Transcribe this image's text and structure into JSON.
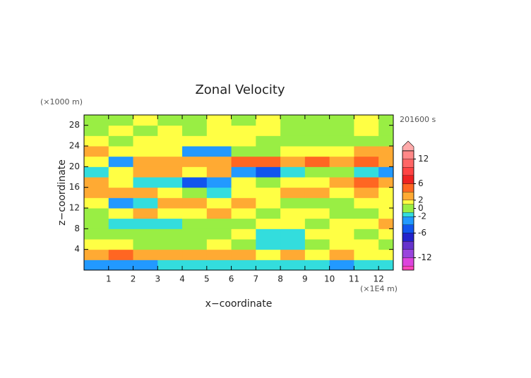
{
  "chart_data": {
    "type": "contour",
    "title": "Zonal Velocity",
    "x_label": "x−coordinate",
    "y_label": "z−coordinate",
    "x_unit": "(×1E4 m)",
    "y_unit": "(×1000 m)",
    "time_label": "201600 s",
    "xlim": [
      0,
      12.6
    ],
    "ylim": [
      0,
      30
    ],
    "xticks": [
      1,
      2,
      3,
      4,
      5,
      6,
      7,
      8,
      9,
      10,
      11,
      12
    ],
    "yticks": [
      4,
      8,
      12,
      16,
      20,
      24,
      28
    ],
    "x": [
      0.5,
      1.5,
      2.5,
      3.5,
      4.5,
      5.5,
      6.5,
      7.5,
      8.5,
      9.5,
      10.5,
      11.5,
      12.5
    ],
    "y": [
      1,
      3,
      5,
      7,
      9,
      11,
      13,
      15,
      17,
      19,
      21,
      23,
      25,
      27,
      29
    ],
    "z": [
      [
        -3,
        -3,
        -3,
        -2,
        -2,
        -1.5,
        -1.5,
        -1.5,
        -1.5,
        -1.5,
        -3,
        -1.5,
        -1.5
      ],
      [
        3,
        4,
        3,
        3,
        3,
        3,
        2.5,
        1.5,
        2,
        1.5,
        2,
        1.5,
        1.5
      ],
      [
        1.5,
        1.5,
        0,
        0,
        0,
        1.5,
        0,
        -1.5,
        -1.5,
        0,
        1.5,
        1.5,
        0
      ],
      [
        0,
        0,
        0,
        0,
        0,
        0,
        1.5,
        -1.5,
        -1.5,
        1.5,
        1.5,
        0,
        1.5
      ],
      [
        0,
        -1.5,
        -1.5,
        -1.5,
        0,
        0,
        0,
        1.5,
        1.5,
        0,
        1.5,
        1.5,
        3
      ],
      [
        0,
        1.5,
        3,
        1.5,
        1.5,
        3,
        1.5,
        0,
        1.5,
        1.5,
        0,
        0,
        1.5
      ],
      [
        1.5,
        -3,
        -1.5,
        3,
        3,
        1.5,
        3,
        1.5,
        0,
        0,
        0,
        1.5,
        1.5
      ],
      [
        3,
        3,
        3,
        1.5,
        0,
        -1.5,
        1.5,
        1.5,
        3,
        3,
        1.5,
        3,
        1.5
      ],
      [
        3,
        1.5,
        -1.5,
        -1.5,
        -5,
        -3,
        1.5,
        0,
        1.5,
        1.5,
        3,
        4,
        3
      ],
      [
        -1.5,
        1.5,
        3,
        3,
        1.5,
        3,
        -3,
        -5,
        -1.5,
        0,
        0,
        -1.5,
        -3
      ],
      [
        1.5,
        -3,
        3,
        3,
        3,
        3,
        4,
        4,
        3,
        4,
        3,
        4,
        3
      ],
      [
        3,
        1.5,
        1.5,
        1.5,
        -3,
        -4,
        0,
        0,
        1.5,
        1.5,
        1.5,
        3,
        3
      ],
      [
        1.5,
        0,
        1.5,
        1.5,
        1.5,
        1.5,
        1.5,
        0,
        0,
        0,
        0,
        0,
        0
      ],
      [
        0,
        1.5,
        0,
        1.5,
        0,
        1.5,
        1.5,
        1.5,
        0,
        0,
        0,
        1.5,
        0
      ],
      [
        0,
        0,
        1.5,
        0,
        0,
        1.5,
        0,
        1.5,
        0,
        0,
        0,
        1.5,
        0
      ]
    ],
    "levels": [
      -14,
      -12,
      -10,
      -8,
      -6,
      -4,
      -2,
      -1,
      1,
      2,
      4,
      6,
      8,
      10,
      12,
      14
    ],
    "colors": [
      "#ff44bb",
      "#dd44dd",
      "#9944dd",
      "#6633cc",
      "#2222cc",
      "#1155ee",
      "#2299ff",
      "#33dddd",
      "#99ee44",
      "#ffff44",
      "#ffaa33",
      "#ff6622",
      "#ee2222",
      "#ff4444",
      "#ff6666",
      "#ff8888",
      "#ffaaaa"
    ],
    "clim": [
      -15,
      15
    ],
    "cticks": [
      -12,
      -6,
      -2,
      0,
      2,
      6,
      12
    ]
  }
}
